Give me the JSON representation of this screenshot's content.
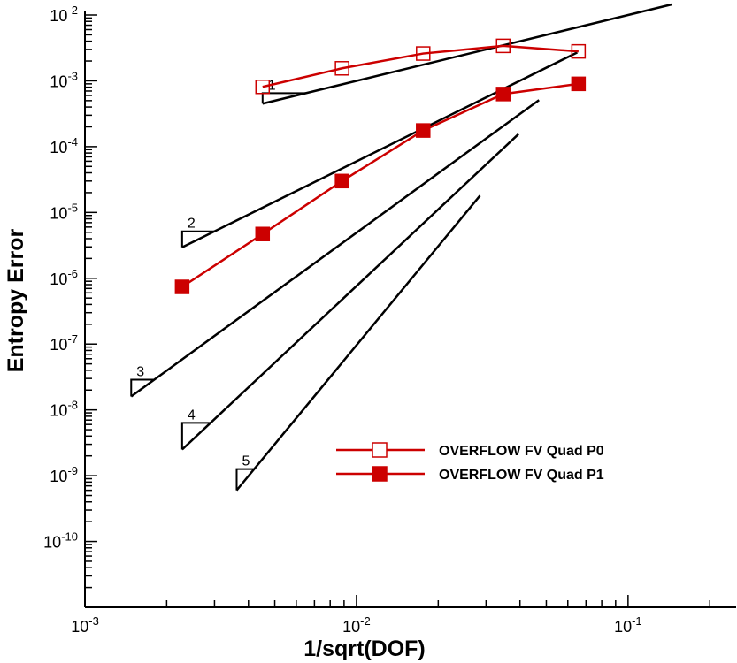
{
  "chart_data": {
    "type": "line",
    "xlabel": "1/sqrt(DOF)",
    "ylabel": "Entropy Error",
    "xscale": "log",
    "yscale": "log",
    "xlim": [
      0.001,
      0.25
    ],
    "ylim": [
      1e-11,
      0.01
    ],
    "xticks": [
      {
        "value": 0.001,
        "base": "10",
        "exp": "-3"
      },
      {
        "value": 0.01,
        "base": "10",
        "exp": "-2"
      },
      {
        "value": 0.1,
        "base": "10",
        "exp": "-1"
      }
    ],
    "yticks": [
      {
        "value": 0.01,
        "base": "10",
        "exp": "-2"
      },
      {
        "value": 0.001,
        "base": "10",
        "exp": "-3"
      },
      {
        "value": 0.0001,
        "base": "10",
        "exp": "-4"
      },
      {
        "value": 1e-05,
        "base": "10",
        "exp": "-5"
      },
      {
        "value": 1e-06,
        "base": "10",
        "exp": "-6"
      },
      {
        "value": 1e-07,
        "base": "10",
        "exp": "-7"
      },
      {
        "value": 1e-08,
        "base": "10",
        "exp": "-8"
      },
      {
        "value": 1e-09,
        "base": "10",
        "exp": "-9"
      },
      {
        "value": 1e-10,
        "base": "10",
        "exp": "-10"
      }
    ],
    "grid": false,
    "legend_position": "bottom-right",
    "series": [
      {
        "name": "OVERFLOW FV Quad P0",
        "color": "#cc0000",
        "marker": "open-square",
        "x": [
          0.00451,
          0.00885,
          0.0176,
          0.0347,
          0.0657
        ],
        "y": [
          0.00081,
          0.00155,
          0.0026,
          0.0034,
          0.0028
        ]
      },
      {
        "name": "OVERFLOW FV Quad P1",
        "color": "#cc0000",
        "marker": "filled-square",
        "x": [
          0.00228,
          0.00451,
          0.00885,
          0.0176,
          0.0347,
          0.0657
        ],
        "y": [
          7.4e-07,
          4.7e-06,
          3e-05,
          0.000176,
          0.00063,
          0.0009
        ]
      }
    ],
    "reference_slopes": [
      {
        "label": "1",
        "line": {
          "x": [
            0.00451,
            0.145
          ],
          "y": [
            0.00045,
            0.0145
          ]
        },
        "triangle": {
          "x0": 0.00451,
          "x1": 0.0065,
          "y0": 0.00045
        }
      },
      {
        "label": "2",
        "line": {
          "x": [
            0.00228,
            0.065
          ],
          "y": [
            2.95e-06,
            0.0027
          ]
        },
        "triangle": {
          "x0": 0.00228,
          "x1": 0.003,
          "y0": 2.95e-06
        }
      },
      {
        "label": "3",
        "line": {
          "x": [
            0.00148,
            0.047
          ],
          "y": [
            1.6e-08,
            0.00051
          ]
        },
        "triangle": {
          "x0": 0.00148,
          "x1": 0.0018,
          "y0": 1.6e-08
        }
      },
      {
        "label": "4",
        "line": {
          "x": [
            0.00228,
            0.0395
          ],
          "y": [
            2.5e-09,
            0.000155
          ]
        },
        "triangle": {
          "x0": 0.00228,
          "x1": 0.0029,
          "y0": 2.5e-09
        }
      },
      {
        "label": "5",
        "line": {
          "x": [
            0.00362,
            0.0285
          ],
          "y": [
            6e-10,
            1.8e-05
          ]
        },
        "triangle": {
          "x0": 0.00362,
          "x1": 0.0042,
          "y0": 6e-10
        }
      }
    ]
  }
}
